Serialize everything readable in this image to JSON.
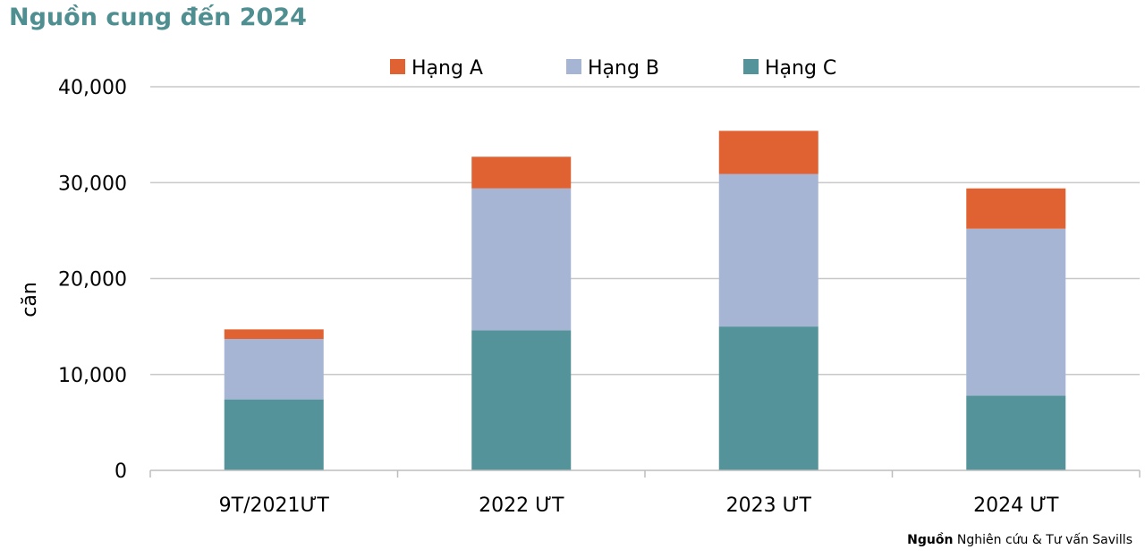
{
  "title": "Nguồn cung đến 2024",
  "source": {
    "label": "Nguồn",
    "text": "Nghiên cứu & Tư vấn Savills"
  },
  "colors": {
    "Hạng A": "#e06232",
    "Hạng B": "#a5b5d3",
    "Hạng C": "#55939a",
    "title": "#4f8f91"
  },
  "chart_data": {
    "type": "bar",
    "stacked": true,
    "categories": [
      "9T/2021ƯT",
      "2022 ƯT",
      "2023 ƯT",
      "2024 ƯT"
    ],
    "series": [
      {
        "name": "Hạng C",
        "values": [
          7400,
          14600,
          15000,
          7800
        ]
      },
      {
        "name": "Hạng B",
        "values": [
          6300,
          14800,
          15900,
          17400
        ]
      },
      {
        "name": "Hạng A",
        "values": [
          1000,
          3300,
          4500,
          4200
        ]
      }
    ],
    "legend_order": [
      "Hạng A",
      "Hạng B",
      "Hạng C"
    ],
    "legend_position": "top",
    "ylabel": "căn",
    "xlabel": "",
    "ylim": [
      0,
      40000
    ],
    "yticks": [
      0,
      10000,
      20000,
      30000,
      40000
    ],
    "ytick_labels": [
      "0",
      "10,000",
      "20,000",
      "30,000",
      "40,000"
    ],
    "grid": true
  }
}
